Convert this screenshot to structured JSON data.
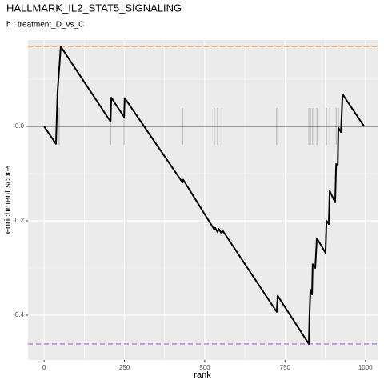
{
  "chart_data": {
    "type": "line",
    "title": "HALLMARK_IL2_STAT5_SIGNALING",
    "subtitle": "h : treatment_D_vs_C",
    "x_label": "rank",
    "y_label": "enrichment score",
    "x": [
      0,
      37,
      42,
      52,
      207,
      209,
      249,
      251,
      431,
      433,
      530,
      532,
      540,
      543,
      553,
      555,
      724,
      727,
      824,
      826,
      829,
      834,
      836,
      844,
      849,
      876,
      879,
      886,
      889,
      906,
      909,
      914,
      916,
      924,
      929,
      996
    ],
    "values": [
      0,
      -0.037,
      0.073,
      0.169,
      0.01,
      0.061,
      0.02,
      0.06,
      -0.119,
      -0.113,
      -0.219,
      -0.215,
      -0.224,
      -0.217,
      -0.227,
      -0.22,
      -0.393,
      -0.359,
      -0.461,
      -0.402,
      -0.346,
      -0.356,
      -0.292,
      -0.3,
      -0.237,
      -0.268,
      -0.2,
      -0.207,
      -0.137,
      -0.161,
      -0.08,
      -0.081,
      -0.003,
      -0.012,
      0.068,
      0
    ],
    "color": "#000000",
    "hits": [
      47,
      207,
      249,
      431,
      530,
      540,
      553,
      724,
      824,
      829,
      836,
      849,
      879,
      889,
      909,
      916
    ],
    "hit_color": "#9a9a9a",
    "max_es": 0.169,
    "max_es_color": "#ffa94d",
    "min_es": -0.461,
    "min_es_color": "#b57ee8",
    "zero_line": 0,
    "xlim": [
      -50,
      1038
    ],
    "ylim": [
      -0.495,
      0.183
    ],
    "xticks": [
      0,
      250,
      500,
      750,
      1000
    ],
    "yticks": [
      -0.4,
      -0.2,
      {
        "value": 0,
        "label": "0.0"
      }
    ],
    "grid": true
  }
}
